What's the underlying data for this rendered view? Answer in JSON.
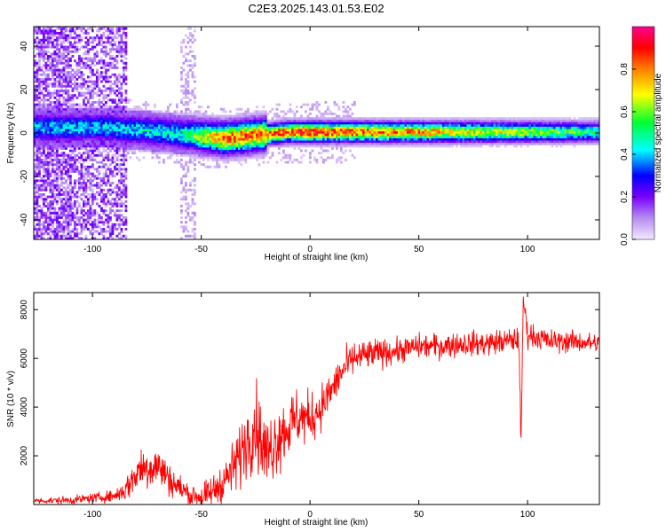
{
  "title": "C2E3.2025.143.01.53.E02",
  "chart_data": [
    {
      "type": "heatmap",
      "xlabel": "Height of straight line (km)",
      "ylabel": "Frequency (Hz)",
      "xlim": [
        -127,
        133
      ],
      "ylim": [
        -49,
        49
      ],
      "x_ticks": [
        -100,
        -50,
        0,
        50,
        100
      ],
      "y_ticks": [
        -40,
        -20,
        0,
        20,
        40
      ],
      "colorbar": {
        "label": "Normalized spectral amplitude",
        "range": [
          0,
          1
        ],
        "ticks": [
          "0.0",
          "0.2",
          "0.4",
          "0.6",
          "0.8"
        ],
        "tick_values": [
          0.0,
          0.2,
          0.4,
          0.6,
          0.8
        ],
        "colormap": [
          "#f4e9ff",
          "#b58cf0",
          "#7a00ff",
          "#0000ff",
          "#00ffff",
          "#00ff33",
          "#ffff00",
          "#ff8000",
          "#ff0000",
          "#ff0090"
        ]
      },
      "ridge": {
        "center_freq_hz": [
          [
            -95,
            2
          ],
          [
            -80,
            1
          ],
          [
            -60,
            -1
          ],
          [
            -40,
            -3
          ],
          [
            -30,
            -2
          ],
          [
            -10,
            0
          ],
          [
            0,
            0
          ],
          [
            50,
            0
          ],
          [
            100,
            0
          ],
          [
            133,
            0
          ]
        ],
        "peak_amplitude": [
          [
            -95,
            0.45
          ],
          [
            -60,
            0.5
          ],
          [
            -40,
            0.85
          ],
          [
            -10,
            0.9
          ],
          [
            0,
            0.95
          ],
          [
            133,
            0.55
          ]
        ]
      },
      "noise_region_km": [
        -127,
        -85
      ],
      "secondary_noise_band_km": [
        -60,
        -53
      ]
    },
    {
      "type": "line",
      "xlabel": "Height of straight line (km)",
      "ylabel": "SNR (10 * v/v)",
      "xlim": [
        -127,
        133
      ],
      "ylim": [
        0,
        8700
      ],
      "x_ticks": [
        -100,
        -50,
        0,
        50,
        100
      ],
      "y_ticks": [
        2000,
        4000,
        6000,
        8000
      ],
      "series": [
        {
          "color": "#ff0000",
          "points": [
            [
              -127,
              150
            ],
            [
              -110,
              180
            ],
            [
              -100,
              260
            ],
            [
              -90,
              350
            ],
            [
              -85,
              600
            ],
            [
              -78,
              1500
            ],
            [
              -70,
              1600
            ],
            [
              -62,
              800
            ],
            [
              -55,
              400
            ],
            [
              -48,
              300
            ],
            [
              -40,
              900
            ],
            [
              -35,
              1500
            ],
            [
              -30,
              2500
            ],
            [
              -25,
              3300
            ],
            [
              -20,
              2000
            ],
            [
              -15,
              2800
            ],
            [
              -10,
              3200
            ],
            [
              -5,
              3600
            ],
            [
              0,
              3500
            ],
            [
              5,
              4000
            ],
            [
              10,
              4700
            ],
            [
              15,
              5500
            ],
            [
              20,
              6000
            ],
            [
              30,
              6200
            ],
            [
              40,
              6300
            ],
            [
              50,
              6500
            ],
            [
              60,
              6500
            ],
            [
              70,
              6600
            ],
            [
              80,
              6600
            ],
            [
              90,
              6700
            ],
            [
              96,
              6800
            ],
            [
              97,
              2400
            ],
            [
              98,
              8500
            ],
            [
              100,
              7000
            ],
            [
              110,
              6700
            ],
            [
              120,
              6700
            ],
            [
              133,
              6600
            ]
          ],
          "noise_amplitude": [
            [
              -127,
              100
            ],
            [
              -90,
              200
            ],
            [
              -75,
              900
            ],
            [
              -60,
              500
            ],
            [
              -45,
              500
            ],
            [
              -25,
              1500
            ],
            [
              -10,
              1200
            ],
            [
              10,
              700
            ],
            [
              40,
              450
            ],
            [
              100,
              450
            ],
            [
              133,
              350
            ]
          ]
        }
      ]
    }
  ]
}
